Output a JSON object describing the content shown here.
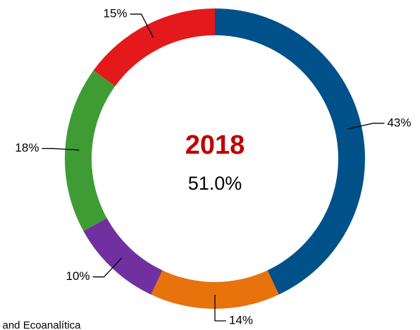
{
  "chart_data": {
    "type": "donut",
    "title": "2018",
    "subtitle": "51.0%",
    "values": [
      43,
      14,
      10,
      18,
      15
    ],
    "value_labels": [
      "43%",
      "14%",
      "10%",
      "18%",
      "15%"
    ],
    "colors": [
      "#005189",
      "#e8720c",
      "#7030a0",
      "#3f9c35",
      "#e3191b"
    ],
    "source": "i and Ecoanalítica"
  }
}
